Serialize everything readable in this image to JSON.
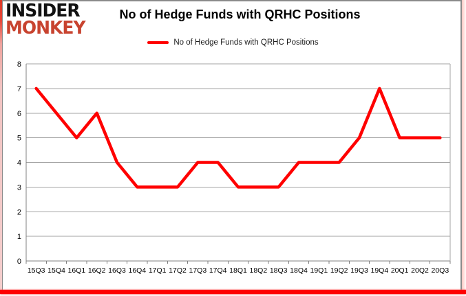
{
  "logo": {
    "line1": "INSIDER",
    "line2": "MONKEY"
  },
  "header": {
    "title": "No of Hedge Funds with QRHC Positions"
  },
  "legend": {
    "label": "No of Hedge Funds with QRHC Positions"
  },
  "colors": {
    "series_line": "#ff0000",
    "logo_red": "#c8432f",
    "gridline": "#a3a3a3",
    "axis": "#808080",
    "accent_bar": "#fe0100",
    "label_text": "#000000"
  },
  "chart_data": {
    "type": "line",
    "title": "No of Hedge Funds with QRHC Positions",
    "categories": [
      "15Q3",
      "15Q4",
      "16Q1",
      "16Q2",
      "16Q3",
      "16Q4",
      "17Q1",
      "17Q2",
      "17Q3",
      "17Q4",
      "18Q1",
      "18Q2",
      "18Q3",
      "18Q4",
      "19Q1",
      "19Q2",
      "19Q3",
      "19Q4",
      "20Q1",
      "20Q2",
      "20Q3"
    ],
    "series": [
      {
        "name": "No of Hedge Funds with QRHC Positions",
        "values": [
          7,
          6,
          5,
          6,
          4,
          3,
          3,
          3,
          4,
          4,
          3,
          3,
          3,
          4,
          4,
          4,
          5,
          7,
          5,
          5,
          5
        ]
      }
    ],
    "xlabel": "",
    "ylabel": "",
    "ylim": [
      0,
      8
    ],
    "yticks": [
      0,
      1,
      2,
      3,
      4,
      5,
      6,
      7,
      8
    ],
    "grid": true,
    "legend_position": "top-center"
  }
}
